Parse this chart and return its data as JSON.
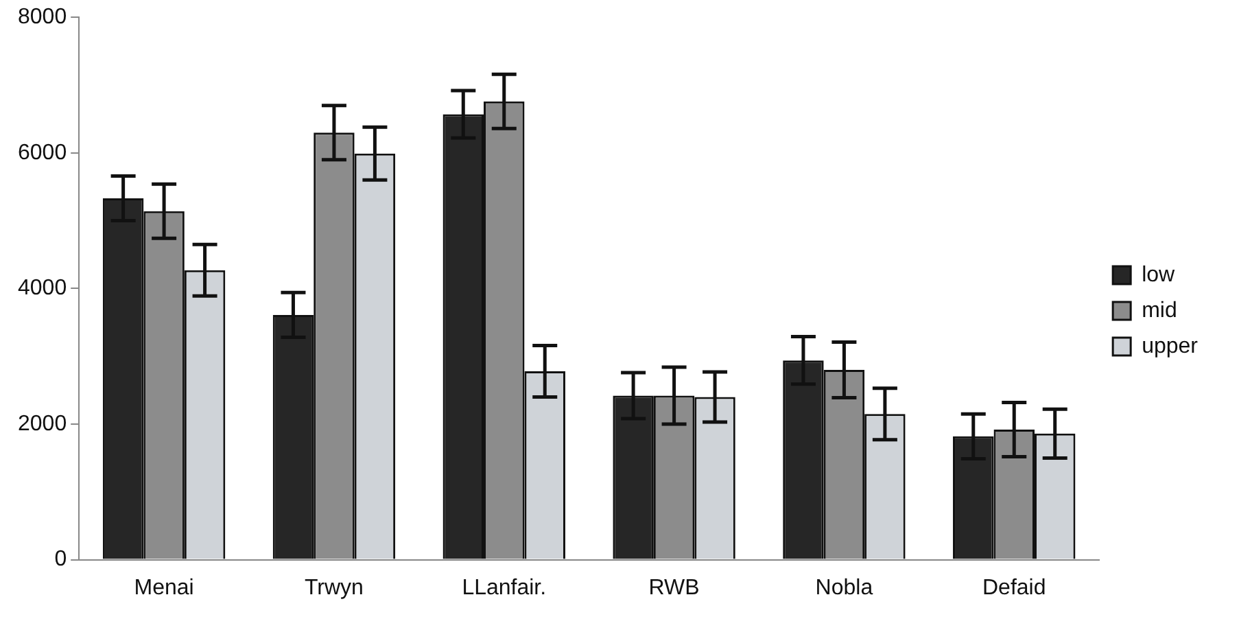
{
  "chart_data": {
    "type": "bar",
    "categories": [
      "Menai",
      "Trwyn",
      "LLanfair.",
      "RWB",
      "Nobla",
      "Defaid"
    ],
    "series": [
      {
        "name": "low",
        "color": "#262626",
        "values": [
          5330,
          3610,
          6570,
          2420,
          2940,
          1820
        ],
        "errors": [
          330,
          330,
          350,
          340,
          350,
          330
        ]
      },
      {
        "name": "mid",
        "color": "#8c8c8c",
        "values": [
          5140,
          6300,
          6760,
          2420,
          2800,
          1920
        ],
        "errors": [
          400,
          400,
          400,
          420,
          410,
          400
        ]
      },
      {
        "name": "upper",
        "color": "#cfd3d8",
        "values": [
          4270,
          5990,
          2780,
          2400,
          2150,
          1860
        ],
        "errors": [
          380,
          390,
          380,
          370,
          380,
          360
        ]
      }
    ],
    "ylim": [
      0,
      8000
    ],
    "yticks": [
      0,
      2000,
      4000,
      6000,
      8000
    ],
    "grid": false,
    "legend": "right"
  }
}
